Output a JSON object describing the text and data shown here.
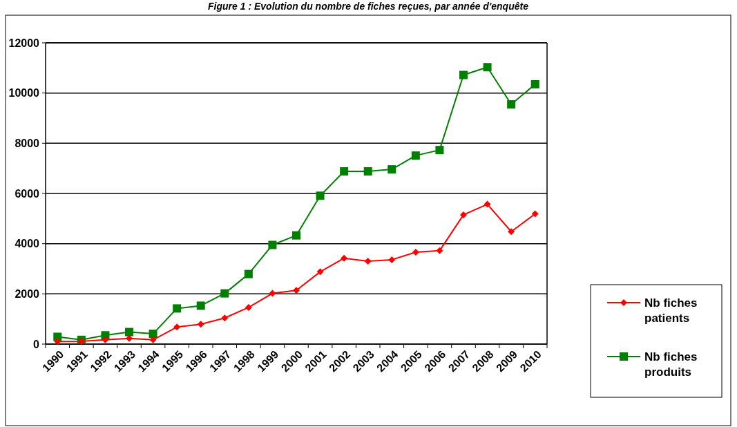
{
  "chart_data": {
    "type": "line",
    "title": "Figure 1 : Evolution du nombre de fiches reçues, par année d'enquête",
    "categories": [
      "1990",
      "1991",
      "1992",
      "1993",
      "1994",
      "1995",
      "1996",
      "1997",
      "1998",
      "1999",
      "2000",
      "2001",
      "2002",
      "2003",
      "2004",
      "2005",
      "2006",
      "2007",
      "2008",
      "2009",
      "2010"
    ],
    "series": [
      {
        "name": "Nb fiches patients",
        "color": "#ff0000",
        "marker": "diamond",
        "values": [
          100,
          110,
          170,
          230,
          170,
          680,
          790,
          1040,
          1460,
          2020,
          2140,
          2880,
          3420,
          3300,
          3360,
          3660,
          3720,
          5150,
          5570,
          4480,
          5190
        ]
      },
      {
        "name": "Nb fiches produits",
        "color": "#008000",
        "marker": "square",
        "values": [
          290,
          170,
          350,
          480,
          410,
          1420,
          1530,
          2020,
          2790,
          3950,
          4330,
          5910,
          6880,
          6880,
          6960,
          7510,
          7730,
          10720,
          11030,
          9550,
          10350
        ]
      }
    ],
    "ylim": [
      0,
      12000
    ],
    "yticks": [
      0,
      2000,
      4000,
      6000,
      8000,
      10000,
      12000
    ],
    "grid": "y",
    "legend": "right"
  }
}
